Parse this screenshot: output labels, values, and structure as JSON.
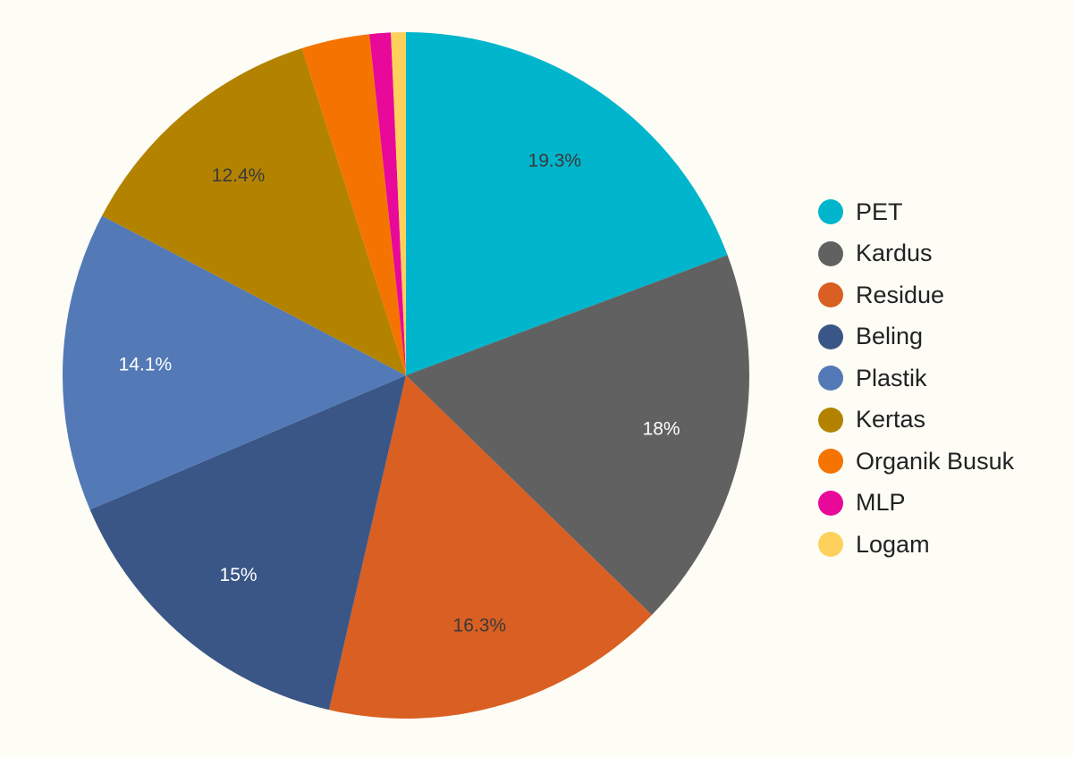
{
  "chart_data": {
    "type": "pie",
    "title": "",
    "legend_position": "right",
    "series": [
      {
        "label": "PET",
        "value": 19.3,
        "display": "19.3%",
        "color": "#00b5cc"
      },
      {
        "label": "Kardus",
        "value": 18.0,
        "display": "18%",
        "color": "#616161"
      },
      {
        "label": "Residue",
        "value": 16.3,
        "display": "16.3%",
        "color": "#d95f22"
      },
      {
        "label": "Beling",
        "value": 15.0,
        "display": "15%",
        "color": "#3a5686"
      },
      {
        "label": "Plastik",
        "value": 14.1,
        "display": "14.1%",
        "color": "#537ab6"
      },
      {
        "label": "Kertas",
        "value": 12.4,
        "display": "12.4%",
        "color": "#b38300"
      },
      {
        "label": "Organik Busuk",
        "value": 3.2,
        "display": "",
        "color": "#f57300"
      },
      {
        "label": "MLP",
        "value": 1.0,
        "display": "",
        "color": "#e8089a"
      },
      {
        "label": "Logam",
        "value": 0.7,
        "display": "",
        "color": "#fdd15c"
      }
    ]
  }
}
